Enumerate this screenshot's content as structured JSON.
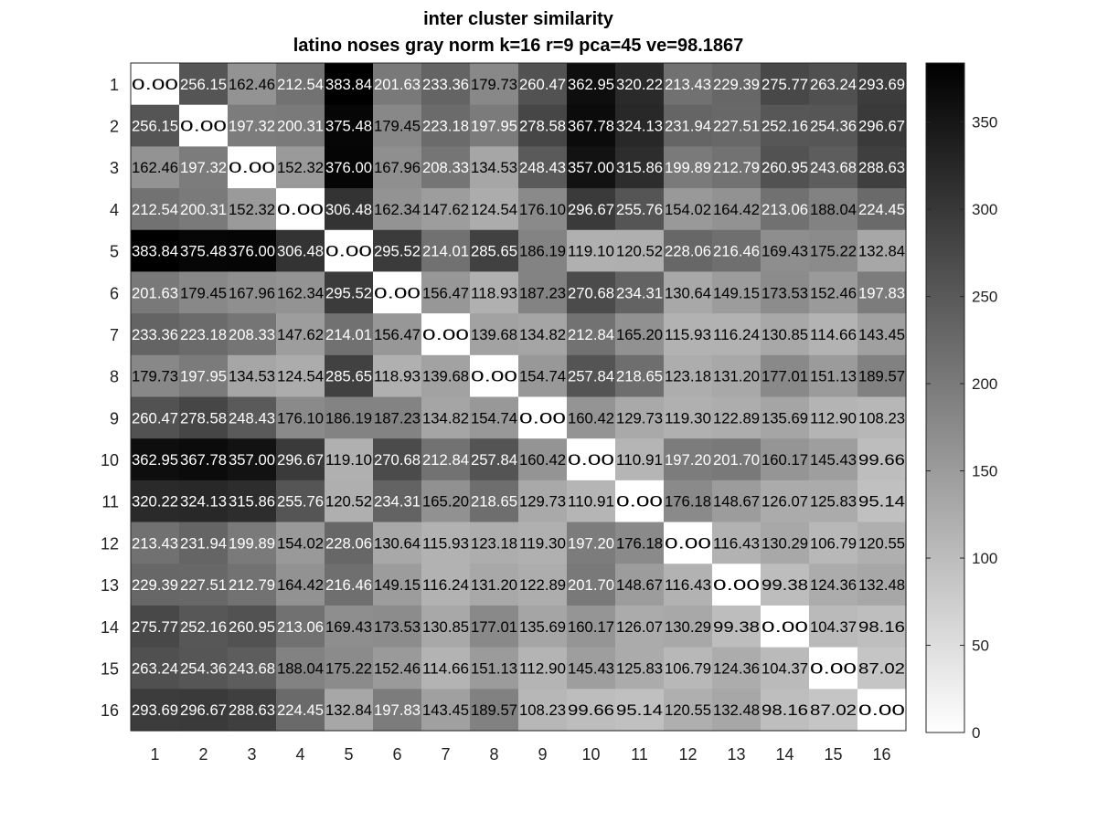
{
  "chart_data": {
    "type": "heatmap",
    "title": "inter cluster similarity",
    "subtitle": "latino noses gray norm k=16 r=9 pca=45 ve=98.1867",
    "x_labels": [
      "1",
      "2",
      "3",
      "4",
      "5",
      "6",
      "7",
      "8",
      "9",
      "10",
      "11",
      "12",
      "13",
      "14",
      "15",
      "16"
    ],
    "y_labels": [
      "1",
      "2",
      "3",
      "4",
      "5",
      "6",
      "7",
      "8",
      "9",
      "10",
      "11",
      "12",
      "13",
      "14",
      "15",
      "16"
    ],
    "colormap": "gray-reversed",
    "low_color": "#ffffff",
    "high_color": "#000000",
    "clim": [
      0,
      383.84
    ],
    "colorbar_ticks": [
      0,
      50,
      100,
      150,
      200,
      250,
      300,
      350
    ],
    "values": [
      [
        0.0,
        256.15,
        162.46,
        212.54,
        383.84,
        201.63,
        233.36,
        179.73,
        260.47,
        362.95,
        320.22,
        213.43,
        229.39,
        275.77,
        263.24,
        293.69
      ],
      [
        256.15,
        0.0,
        197.32,
        200.31,
        375.48,
        179.45,
        223.18,
        197.95,
        278.58,
        367.78,
        324.13,
        231.94,
        227.51,
        252.16,
        254.36,
        296.67
      ],
      [
        162.46,
        197.32,
        0.0,
        152.32,
        376.0,
        167.96,
        208.33,
        134.53,
        248.43,
        357.0,
        315.86,
        199.89,
        212.79,
        260.95,
        243.68,
        288.63
      ],
      [
        212.54,
        200.31,
        152.32,
        0.0,
        306.48,
        162.34,
        147.62,
        124.54,
        176.1,
        296.67,
        255.76,
        154.02,
        164.42,
        213.06,
        188.04,
        224.45
      ],
      [
        383.84,
        375.48,
        376.0,
        306.48,
        0.0,
        295.52,
        214.01,
        285.65,
        186.19,
        119.1,
        120.52,
        228.06,
        216.46,
        169.43,
        175.22,
        132.84
      ],
      [
        201.63,
        179.45,
        167.96,
        162.34,
        295.52,
        0.0,
        156.47,
        118.93,
        187.23,
        270.68,
        234.31,
        130.64,
        149.15,
        173.53,
        152.46,
        197.83
      ],
      [
        233.36,
        223.18,
        208.33,
        147.62,
        214.01,
        156.47,
        0.0,
        139.68,
        134.82,
        212.84,
        165.2,
        115.93,
        116.24,
        130.85,
        114.66,
        143.45
      ],
      [
        179.73,
        197.95,
        134.53,
        124.54,
        285.65,
        118.93,
        139.68,
        0.0,
        154.74,
        257.84,
        218.65,
        123.18,
        131.2,
        177.01,
        151.13,
        189.57
      ],
      [
        260.47,
        278.58,
        248.43,
        176.1,
        186.19,
        187.23,
        134.82,
        154.74,
        0.0,
        160.42,
        129.73,
        119.3,
        122.89,
        135.69,
        112.9,
        108.23
      ],
      [
        362.95,
        367.78,
        357.0,
        296.67,
        119.1,
        270.68,
        212.84,
        257.84,
        160.42,
        0.0,
        110.91,
        197.2,
        201.7,
        160.17,
        145.43,
        99.66
      ],
      [
        320.22,
        324.13,
        315.86,
        255.76,
        120.52,
        234.31,
        165.2,
        218.65,
        129.73,
        110.91,
        0.0,
        176.18,
        148.67,
        126.07,
        125.83,
        95.14
      ],
      [
        213.43,
        231.94,
        199.89,
        154.02,
        228.06,
        130.64,
        115.93,
        123.18,
        119.3,
        197.2,
        176.18,
        0.0,
        116.43,
        130.29,
        106.79,
        120.55
      ],
      [
        229.39,
        227.51,
        212.79,
        164.42,
        216.46,
        149.15,
        116.24,
        131.2,
        122.89,
        201.7,
        148.67,
        116.43,
        0.0,
        99.38,
        124.36,
        132.48
      ],
      [
        275.77,
        252.16,
        260.95,
        213.06,
        169.43,
        173.53,
        130.85,
        177.01,
        135.69,
        160.17,
        126.07,
        130.29,
        99.38,
        0.0,
        104.37,
        98.16
      ],
      [
        263.24,
        254.36,
        243.68,
        188.04,
        175.22,
        152.46,
        114.66,
        151.13,
        112.9,
        145.43,
        125.83,
        106.79,
        124.36,
        104.37,
        0.0,
        87.02
      ],
      [
        293.69,
        296.67,
        288.63,
        224.45,
        132.84,
        197.83,
        143.45,
        189.57,
        108.23,
        99.66,
        95.14,
        120.55,
        132.48,
        98.16,
        87.02,
        0.0
      ]
    ]
  }
}
